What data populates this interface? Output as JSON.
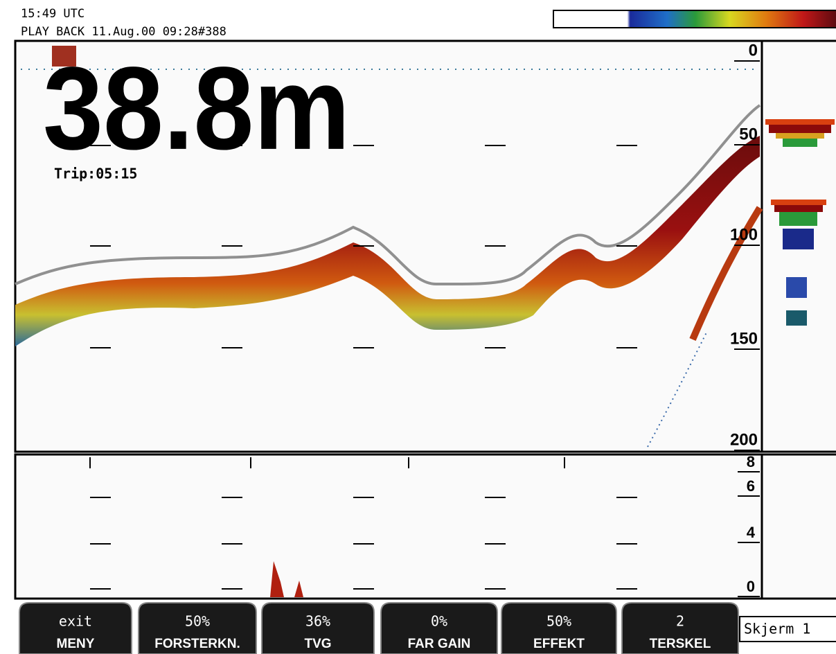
{
  "header": {
    "clock": "15:49 UTC",
    "playback": "PLAY BACK 11.Aug.00 09:28#388"
  },
  "echogram": {
    "depth_reading": "38.8m",
    "trip": "Trip:05:15",
    "depth_scale": [
      0,
      50,
      100,
      150,
      200
    ]
  },
  "zoom_panel": {
    "scale": [
      8,
      6,
      4,
      0
    ]
  },
  "buttons": [
    {
      "value": "exit",
      "label": "MENY"
    },
    {
      "value": "50%",
      "label": "FORSTERKN."
    },
    {
      "value": "36%",
      "label": "TVG"
    },
    {
      "value": "0%",
      "label": "FAR GAIN"
    },
    {
      "value": "50%",
      "label": "EFFEKT"
    },
    {
      "value": "2",
      "label": "TERSKEL"
    }
  ],
  "screen_label": "Skjerm 1"
}
